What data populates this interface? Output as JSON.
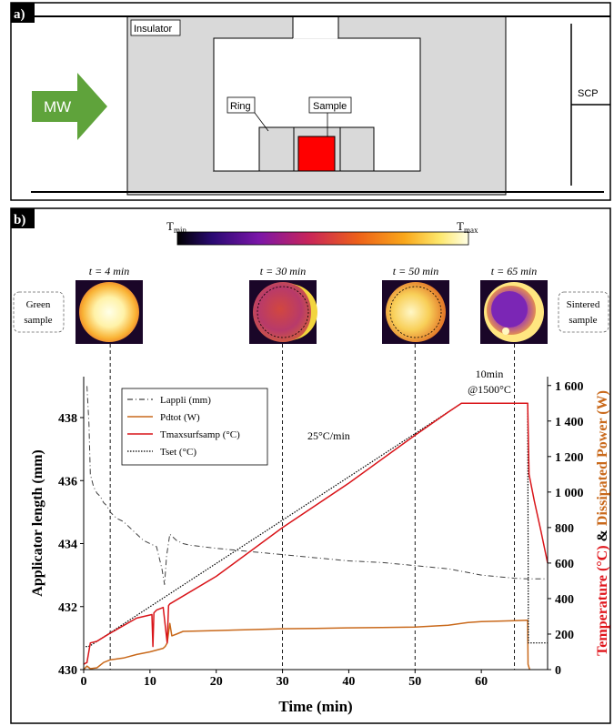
{
  "panel_a": {
    "label": "a)",
    "labels": {
      "insulator": "Insulator",
      "mw": "MW",
      "ring": "Ring",
      "sample": "Sample",
      "scp": "SCP"
    }
  },
  "panel_b": {
    "label": "b)",
    "colorbar": {
      "min_label": "T",
      "min_sub": "min",
      "max_label": "T",
      "max_sub": "max"
    },
    "thermal_images": [
      {
        "time_label": "t = 4 min"
      },
      {
        "time_label": "t = 30 min"
      },
      {
        "time_label": "t = 50 min"
      },
      {
        "time_label": "t = 65 min"
      }
    ],
    "side_labels": {
      "green_1": "Green",
      "green_2": "sample",
      "sintered_1": "Sintered",
      "sintered_2": "sample"
    }
  },
  "colors": {
    "lappli": "#404040",
    "pdtot": "#c9691b",
    "tmax": "#d9151a",
    "tset": "#000000",
    "right_axis_red": "#e0141b",
    "right_axis_orange": "#c9691b",
    "mw_arrow": "#5fa33b",
    "sample_red": "#ff0000",
    "insulator_gray": "#d9d9d9"
  },
  "chart_data": {
    "type": "line",
    "xlabel": "Time (min)",
    "ylabel": "Applicator length (mm)",
    "y2label_temperature": "Temperature (°C)",
    "y2label_joiner": " & ",
    "y2label_power": "Dissipated Power (W)",
    "xlim": [
      0,
      70
    ],
    "ylim": [
      430,
      439.3
    ],
    "y2lim": [
      0,
      1650
    ],
    "xticks": [
      "0",
      "10",
      "20",
      "30",
      "40",
      "50",
      "60"
    ],
    "yticks": [
      "430",
      "432",
      "434",
      "436",
      "438"
    ],
    "y2ticks": [
      "0",
      "200",
      "400",
      "600",
      "800",
      "1 000",
      "1 200",
      "1 400",
      "1 600"
    ],
    "legend": [
      "Lappli (mm)",
      "Pdtot (W)",
      "Tmaxsurfsamp (°C)",
      "Tset (°C)"
    ],
    "legend_placement": "top-left",
    "annotations": [
      {
        "text": "25°C/min"
      },
      {
        "text": "10min"
      },
      {
        "text": "@1500°C"
      }
    ],
    "series": [
      {
        "name": "Lappli (mm)",
        "axis": "left",
        "x": [
          0.5,
          0.8,
          1,
          1.5,
          2,
          2.5,
          3,
          3.5,
          4,
          5,
          6,
          7,
          8,
          9,
          10,
          11,
          11.8,
          12.2,
          12.5,
          13,
          14,
          15,
          16,
          20,
          25,
          30,
          35,
          40,
          45,
          50,
          55,
          60,
          65,
          67,
          68,
          69,
          70
        ],
        "y": [
          439.0,
          437.8,
          436.2,
          435.8,
          435.6,
          435.5,
          435.3,
          435.2,
          435.0,
          434.8,
          434.7,
          434.5,
          434.3,
          434.1,
          434.0,
          433.9,
          433.2,
          432.7,
          433.6,
          434.3,
          434.1,
          434.0,
          433.95,
          433.85,
          433.75,
          433.65,
          433.55,
          433.45,
          433.4,
          433.3,
          433.2,
          433.0,
          432.9,
          432.88,
          432.88,
          432.88,
          432.88
        ]
      },
      {
        "name": "Pdtot (W)",
        "axis": "right",
        "x": [
          0,
          0.5,
          1,
          2,
          3,
          4,
          5,
          6,
          8,
          10,
          12,
          12.3,
          12.6,
          13,
          13.3,
          14,
          15,
          20,
          25,
          30,
          35,
          40,
          45,
          50,
          55,
          58,
          60,
          65,
          67,
          67.05,
          67.3
        ],
        "y": [
          0,
          20,
          5,
          10,
          40,
          55,
          60,
          65,
          85,
          100,
          120,
          130,
          150,
          260,
          190,
          200,
          215,
          220,
          225,
          230,
          232,
          235,
          237,
          240,
          250,
          265,
          270,
          275,
          278,
          30,
          0
        ]
      },
      {
        "name": "Tmaxsurfsamp (°C)",
        "axis": "right",
        "x": [
          0,
          0.5,
          1,
          1.5,
          2,
          4,
          8,
          10.3,
          10.45,
          10.6,
          11,
          12,
          12.6,
          12.8,
          13,
          20,
          30,
          40,
          50,
          55,
          57,
          60,
          65,
          67,
          67.2,
          68,
          69,
          70
        ],
        "y": [
          30,
          40,
          150,
          155,
          160,
          205,
          290,
          310,
          130,
          320,
          335,
          350,
          150,
          360,
          370,
          525,
          800,
          1050,
          1320,
          1450,
          1500,
          1500,
          1500,
          1500,
          1100,
          950,
          780,
          600
        ]
      },
      {
        "name": "Tset (°C)",
        "axis": "right",
        "x": [
          0.3,
          0.7,
          1,
          57,
          67,
          67.1,
          70
        ],
        "y": [
          130,
          130,
          135,
          1500,
          1500,
          150,
          150
        ]
      }
    ]
  }
}
